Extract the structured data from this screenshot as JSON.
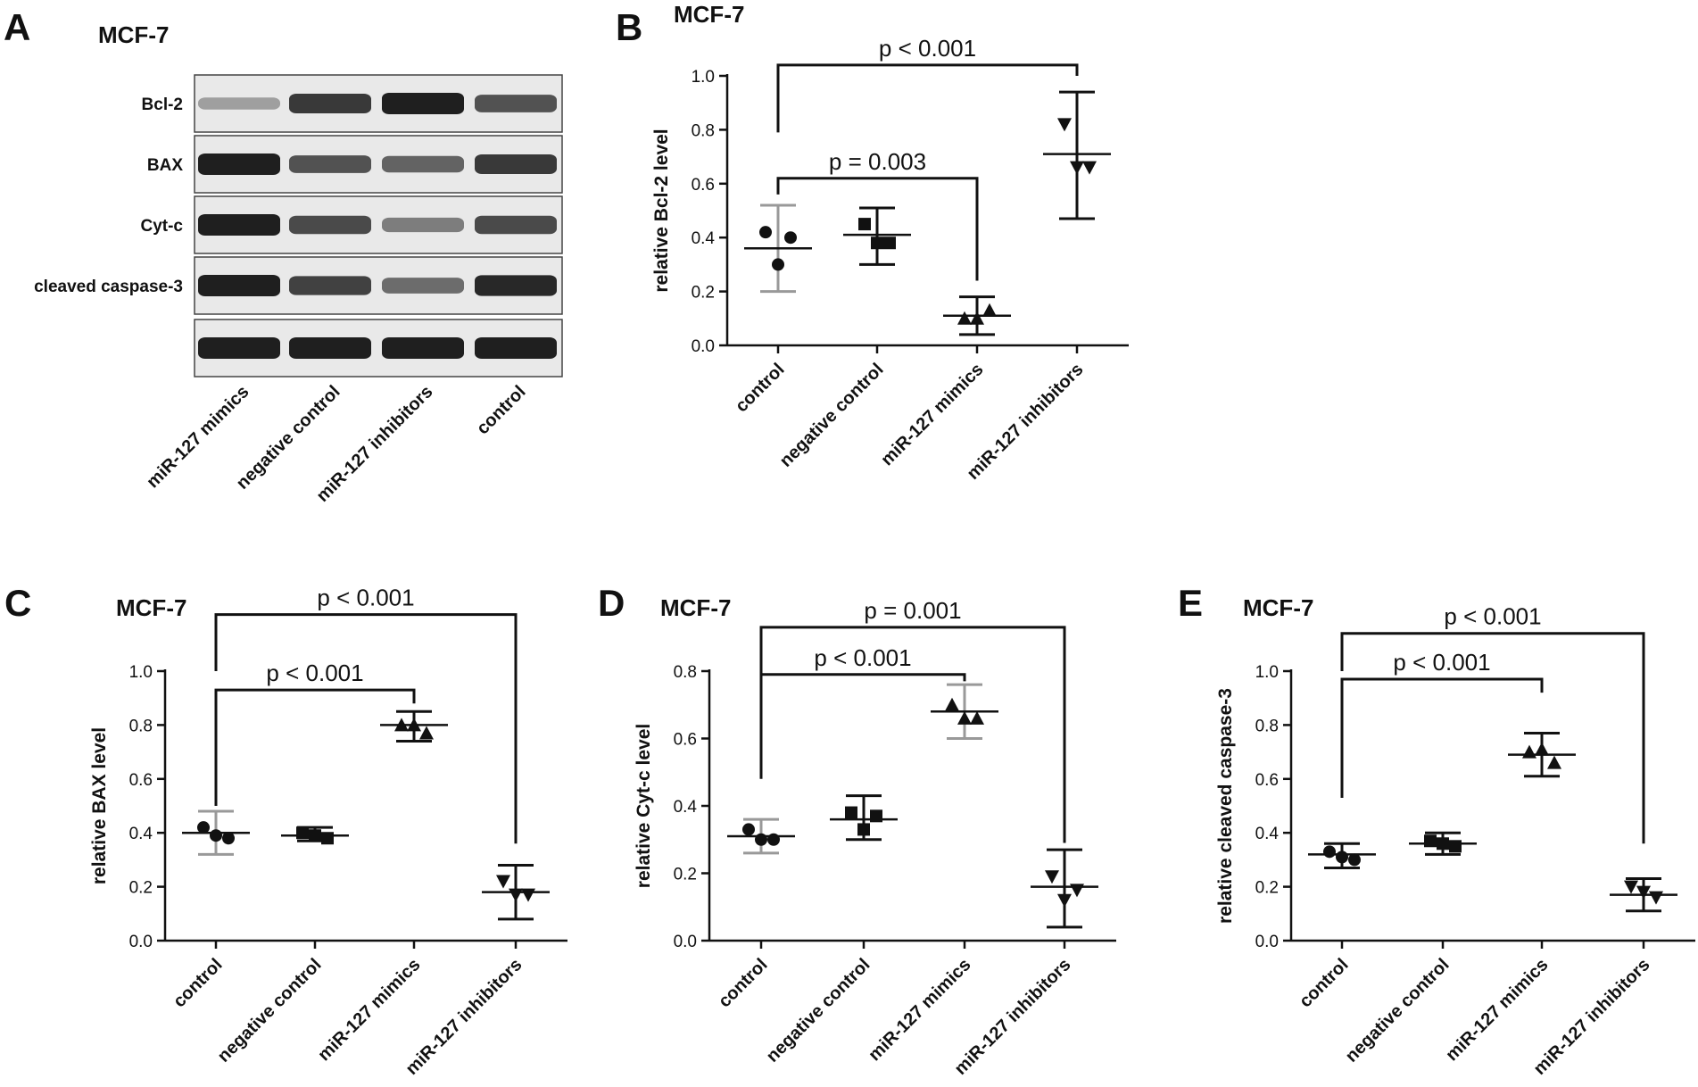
{
  "figure": {
    "panel_a": {
      "label": "A",
      "title": "MCF-7",
      "rows": [
        {
          "label": "Bcl-2",
          "intensities": [
            0.25,
            0.85,
            1.0,
            0.7
          ]
        },
        {
          "label": "BAX",
          "intensities": [
            1.0,
            0.7,
            0.6,
            0.85
          ]
        },
        {
          "label": "Cyt-c",
          "intensities": [
            1.0,
            0.75,
            0.45,
            0.75
          ]
        },
        {
          "label": "cleaved caspase-3",
          "intensities": [
            1.0,
            0.8,
            0.55,
            0.95
          ]
        },
        {
          "label": "",
          "intensities": [
            1.0,
            1.0,
            1.0,
            1.0
          ]
        }
      ],
      "lanes": [
        "miR-127 mimics",
        "negative control",
        "miR-127 inhibitors",
        "control"
      ]
    }
  },
  "chart_data": [
    {
      "panel": "B",
      "type": "scatter",
      "title": "MCF-7",
      "ylabel": "relative Bcl-2 level",
      "categories": [
        "control",
        "negative control",
        "miR-127 mimics",
        "miR-127 inhibitors"
      ],
      "ylim": [
        0,
        1.0
      ],
      "yticks": [
        "0.0",
        "0.2",
        "0.4",
        "0.6",
        "0.8",
        "1.0"
      ],
      "series": [
        {
          "marker": "circle",
          "points": [
            0.42,
            0.4,
            0.3
          ],
          "mean": 0.36,
          "err": [
            0.2,
            0.52
          ],
          "err_color": "#999999"
        },
        {
          "marker": "square",
          "points": [
            0.45,
            0.38,
            0.38
          ],
          "mean": 0.41,
          "err": [
            0.3,
            0.51
          ],
          "err_color": "#111111"
        },
        {
          "marker": "triangle",
          "points": [
            0.1,
            0.13,
            0.1
          ],
          "mean": 0.11,
          "err": [
            0.04,
            0.18
          ],
          "err_color": "#111111"
        },
        {
          "marker": "triangle-down",
          "points": [
            0.82,
            0.66,
            0.66
          ],
          "mean": 0.71,
          "err": [
            0.47,
            0.94
          ],
          "err_color": "#111111"
        }
      ],
      "annotations": [
        {
          "text": "p = 0.003",
          "from": 0,
          "to": 2,
          "y": 0.62,
          "left_end": 0.56,
          "right_end": 0.24
        },
        {
          "text": "p < 0.001",
          "from": 0,
          "to": 3,
          "y": 1.04,
          "left_end": 0.79,
          "right_end": 1.0
        }
      ]
    },
    {
      "panel": "C",
      "type": "scatter",
      "title": "MCF-7",
      "ylabel": "relative BAX level",
      "categories": [
        "control",
        "negative control",
        "miR-127 mimics",
        "miR-127 inhibitors"
      ],
      "ylim": [
        0,
        1.0
      ],
      "yticks": [
        "0.0",
        "0.2",
        "0.4",
        "0.6",
        "0.8",
        "1.0"
      ],
      "series": [
        {
          "marker": "circle",
          "points": [
            0.42,
            0.38,
            0.39
          ],
          "mean": 0.4,
          "err": [
            0.32,
            0.48
          ],
          "err_color": "#999999"
        },
        {
          "marker": "square",
          "points": [
            0.4,
            0.38,
            0.39
          ],
          "mean": 0.39,
          "err": [
            0.37,
            0.42
          ],
          "err_color": "#111111"
        },
        {
          "marker": "triangle",
          "points": [
            0.8,
            0.77,
            0.8
          ],
          "mean": 0.8,
          "err": [
            0.74,
            0.85
          ],
          "err_color": "#111111"
        },
        {
          "marker": "triangle-down",
          "points": [
            0.22,
            0.17,
            0.17
          ],
          "mean": 0.18,
          "err": [
            0.08,
            0.28
          ],
          "err_color": "#111111"
        }
      ],
      "annotations": [
        {
          "text": "p < 0.001",
          "from": 0,
          "to": 2,
          "y": 0.93,
          "left_end": 0.5,
          "right_end": 0.88
        },
        {
          "text": "p < 0.001",
          "from": 0,
          "to": 3,
          "y": 1.21,
          "left_end": 1.0,
          "right_end": 0.36
        }
      ]
    },
    {
      "panel": "D",
      "type": "scatter",
      "title": "MCF-7",
      "ylabel": "relative Cyt-c level",
      "categories": [
        "control",
        "negative control",
        "miR-127 mimics",
        "miR-127 inhibitors"
      ],
      "ylim": [
        0,
        0.8
      ],
      "yticks": [
        "0.0",
        "0.2",
        "0.4",
        "0.6",
        "0.8"
      ],
      "series": [
        {
          "marker": "circle",
          "points": [
            0.33,
            0.3,
            0.3
          ],
          "mean": 0.31,
          "err": [
            0.26,
            0.36
          ],
          "err_color": "#999999"
        },
        {
          "marker": "square",
          "points": [
            0.38,
            0.37,
            0.33
          ],
          "mean": 0.36,
          "err": [
            0.3,
            0.43
          ],
          "err_color": "#111111"
        },
        {
          "marker": "triangle",
          "points": [
            0.7,
            0.66,
            0.66
          ],
          "mean": 0.68,
          "err": [
            0.6,
            0.76
          ],
          "err_color": "#999999"
        },
        {
          "marker": "triangle-down",
          "points": [
            0.19,
            0.15,
            0.12
          ],
          "mean": 0.16,
          "err": [
            0.04,
            0.27
          ],
          "err_color": "#111111"
        }
      ],
      "annotations": [
        {
          "text": "p < 0.001",
          "from": 0,
          "to": 2,
          "y": 0.79,
          "left_end": 0.48,
          "right_end": 0.77
        },
        {
          "text": "p = 0.001",
          "from": 0,
          "to": 3,
          "y": 0.93,
          "left_end": 0.79,
          "right_end": 0.29
        }
      ]
    },
    {
      "panel": "E",
      "type": "scatter",
      "title": "MCF-7",
      "ylabel": "relative cleaved caspase-3",
      "categories": [
        "control",
        "negative control",
        "miR-127 mimics",
        "miR-127 inhibitors"
      ],
      "ylim": [
        0,
        1.0
      ],
      "yticks": [
        "0.0",
        "0.2",
        "0.4",
        "0.6",
        "0.8",
        "1.0"
      ],
      "series": [
        {
          "marker": "circle",
          "points": [
            0.33,
            0.3,
            0.31
          ],
          "mean": 0.32,
          "err": [
            0.27,
            0.36
          ],
          "err_color": "#111111"
        },
        {
          "marker": "square",
          "points": [
            0.37,
            0.35,
            0.36
          ],
          "mean": 0.36,
          "err": [
            0.32,
            0.4
          ],
          "err_color": "#111111"
        },
        {
          "marker": "triangle",
          "points": [
            0.7,
            0.66,
            0.71
          ],
          "mean": 0.69,
          "err": [
            0.61,
            0.77
          ],
          "err_color": "#111111"
        },
        {
          "marker": "triangle-down",
          "points": [
            0.2,
            0.16,
            0.18
          ],
          "mean": 0.17,
          "err": [
            0.11,
            0.23
          ],
          "err_color": "#111111"
        }
      ],
      "annotations": [
        {
          "text": "p < 0.001",
          "from": 0,
          "to": 2,
          "y": 0.97,
          "left_end": 0.53,
          "right_end": 0.92
        },
        {
          "text": "p < 0.001",
          "from": 0,
          "to": 3,
          "y": 1.14,
          "left_end": 1.0,
          "right_end": 0.36
        }
      ]
    }
  ],
  "panel_labels": [
    "B",
    "C",
    "D",
    "E"
  ]
}
